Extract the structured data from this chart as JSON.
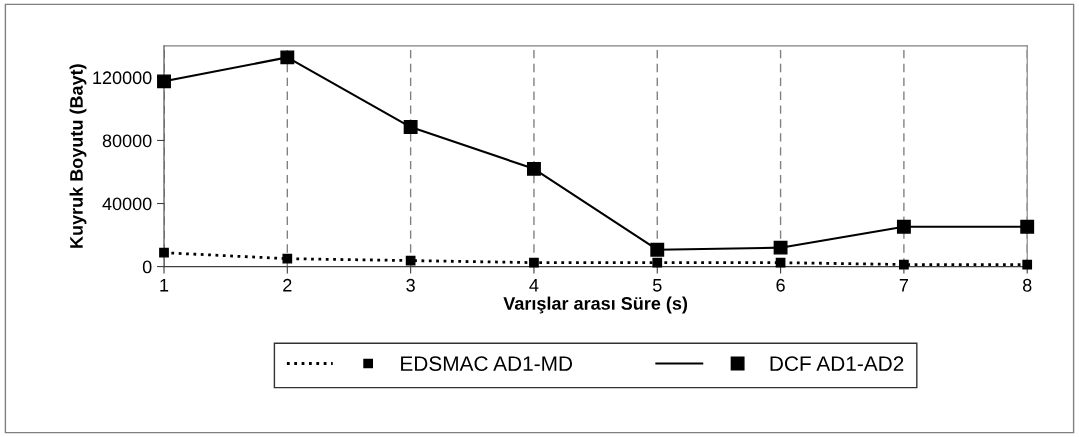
{
  "chart_data": {
    "type": "line",
    "xlabel": "Varışlar arası Süre (s)",
    "ylabel": "Kuyruk Boyutu (Bayt)",
    "x": [
      1,
      2,
      3,
      4,
      5,
      6,
      7,
      8
    ],
    "series": [
      {
        "name": "EDSMAC AD1-MD",
        "color": "#000000",
        "line_style": "dotted",
        "marker": "square",
        "values": [
          8800,
          5000,
          3800,
          2500,
          2500,
          2500,
          1300,
          1300
        ]
      },
      {
        "name": "DCF AD1-AD2",
        "color": "#000000",
        "line_style": "solid",
        "marker": "square",
        "values": [
          117500,
          132700,
          88500,
          62000,
          10700,
          12000,
          25300,
          25300
        ]
      }
    ],
    "xlim": [
      1,
      8
    ],
    "xticks": [
      1,
      2,
      3,
      4,
      5,
      6,
      7,
      8
    ],
    "ylim": [
      0,
      140000
    ],
    "yticks": [
      0,
      40000,
      80000,
      120000
    ],
    "grid": "x",
    "legend": "bottom"
  }
}
